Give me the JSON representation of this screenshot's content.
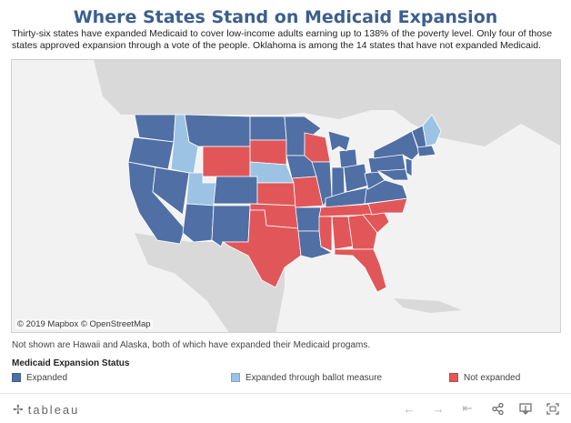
{
  "title": "Where States Stand on Medicaid Expansion",
  "subtitle": "Thirty-six states have expanded Medicaid to cover low-income adults earning up to 138% of the poverty level. Only four of those states approved expansion through a vote of the people. Oklahoma is among the 14 states that have not expanded Medicaid.",
  "map": {
    "attribution": "© 2019 Mapbox  © OpenStreetMap",
    "colors": {
      "expanded": "#4f6fa5",
      "ballot": "#9cc3e4",
      "not_expanded": "#e15759",
      "land": "#d9d9d9",
      "water": "#f2f2f2",
      "border": "#ffffff"
    }
  },
  "note": "Not shown are Hawaii and Alaska, both of which have expanded their Medicaid progams.",
  "legend": {
    "title": "Medicaid Expansion Status",
    "items": [
      {
        "label": "Expanded",
        "color": "#4f6fa5"
      },
      {
        "label": "Expanded through ballot measure",
        "color": "#9cc3e4"
      },
      {
        "label": "Not expanded",
        "color": "#e15759"
      }
    ]
  },
  "footer": {
    "brand": "tableau",
    "tools": [
      "undo-icon",
      "redo-icon",
      "revert-icon",
      "share-icon",
      "download-icon",
      "fullscreen-icon"
    ]
  }
}
